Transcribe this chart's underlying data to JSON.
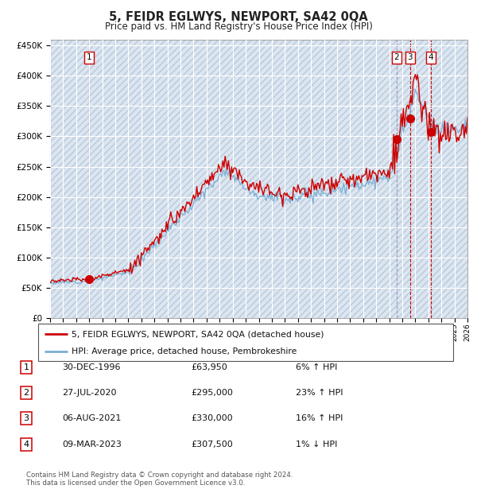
{
  "title": "5, FEIDR EGLWYS, NEWPORT, SA42 0QA",
  "subtitle": "Price paid vs. HM Land Registry's House Price Index (HPI)",
  "background_color": "#ffffff",
  "plot_bg_color": "#dce6f0",
  "grid_color": "#ffffff",
  "hatch_color": "#b8c8dc",
  "red_line_color": "#cc0000",
  "blue_line_color": "#7aaed4",
  "x_start_year": 1994,
  "x_end_year": 2026,
  "ylim_min": 0,
  "ylim_max": 460000,
  "yticks": [
    0,
    50000,
    100000,
    150000,
    200000,
    250000,
    300000,
    350000,
    400000,
    450000
  ],
  "sale_points": [
    {
      "label": "1",
      "year_decimal": 1997.0,
      "price": 63950,
      "vline_color": "#cc0000"
    },
    {
      "label": "2",
      "year_decimal": 2020.57,
      "price": 295000,
      "vline_color": "#8888cc"
    },
    {
      "label": "3",
      "year_decimal": 2021.6,
      "price": 330000,
      "vline_color": "#cc0000"
    },
    {
      "label": "4",
      "year_decimal": 2023.18,
      "price": 307500,
      "vline_color": "#cc0000"
    }
  ],
  "legend_entries": [
    {
      "color": "#cc0000",
      "label": "5, FEIDR EGLWYS, NEWPORT, SA42 0QA (detached house)"
    },
    {
      "color": "#7aaed4",
      "label": "HPI: Average price, detached house, Pembrokeshire"
    }
  ],
  "table_rows": [
    {
      "num": "1",
      "date": "30-DEC-1996",
      "price": "£63,950",
      "change": "6% ↑ HPI"
    },
    {
      "num": "2",
      "date": "27-JUL-2020",
      "price": "£295,000",
      "change": "23% ↑ HPI"
    },
    {
      "num": "3",
      "date": "06-AUG-2021",
      "price": "£330,000",
      "change": "16% ↑ HPI"
    },
    {
      "num": "4",
      "date": "09-MAR-2023",
      "price": "£307,500",
      "change": "1% ↓ HPI"
    }
  ],
  "footer": "Contains HM Land Registry data © Crown copyright and database right 2024.\nThis data is licensed under the Open Government Licence v3.0."
}
